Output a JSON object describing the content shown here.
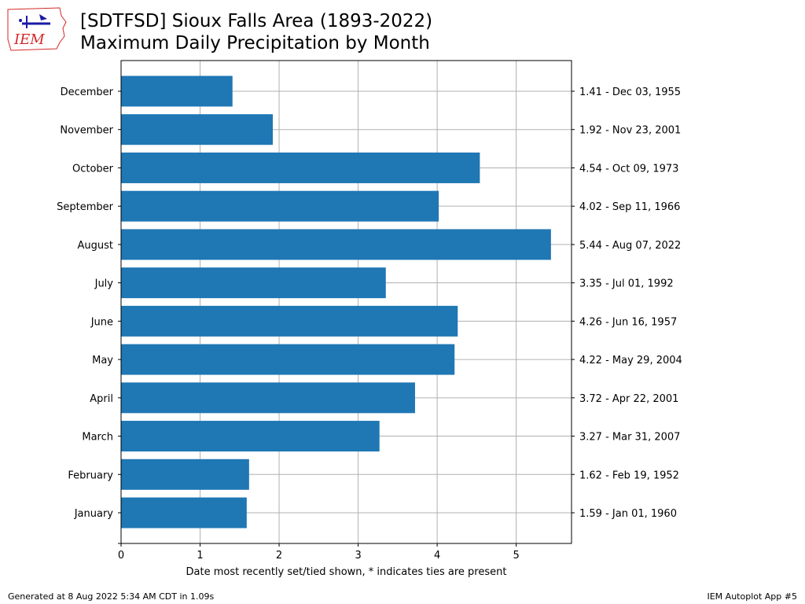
{
  "header": {
    "title_line1": "[SDTFSD] Sioux Falls Area (1893-2022)",
    "title_line2": "Maximum Daily Precipitation by Month",
    "logo_text": "IEM"
  },
  "footer": {
    "left": "Generated at 8 Aug 2022 5:34 AM CDT in 1.09s",
    "right": "IEM Autoplot App #5"
  },
  "colors": {
    "bar": "#1f77b4",
    "grid": "#b0b0b0",
    "axis": "#000000",
    "logo_red": "#d62728",
    "logo_blue": "#1a1aa6"
  },
  "chart_data": {
    "type": "bar",
    "orientation": "horizontal",
    "categories": [
      "January",
      "February",
      "March",
      "April",
      "May",
      "June",
      "July",
      "August",
      "September",
      "October",
      "November",
      "December"
    ],
    "values": [
      1.59,
      1.62,
      3.27,
      3.72,
      4.22,
      4.26,
      3.35,
      5.44,
      4.02,
      4.54,
      1.92,
      1.41
    ],
    "right_labels": [
      "1.59 - Jan 01, 1960",
      "1.62 - Feb 19, 1952",
      "3.27 - Mar 31, 2007",
      "3.72 - Apr 22, 2001",
      "4.22 - May 29, 2004",
      "4.26 - Jun 16, 1957",
      "3.35 - Jul 01, 1992",
      "5.44 - Aug 07, 2022",
      "4.02 - Sep 11, 1966",
      "4.54 - Oct 09, 1973",
      "1.92 - Nov 23, 2001",
      "1.41 - Dec 03, 1955"
    ],
    "xlabel": "Date most recently set/tied shown, * indicates ties are present",
    "xlim": [
      0,
      5.7
    ],
    "xticks": [
      0,
      1,
      2,
      3,
      4,
      5
    ],
    "grid": true
  }
}
